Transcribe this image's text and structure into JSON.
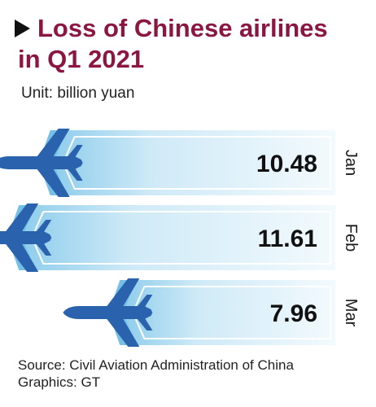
{
  "header": {
    "title_line_1": "Loss of Chinese airlines",
    "title_line_2": "in Q1 2021",
    "unit": "Unit: billion yuan"
  },
  "colors": {
    "title": "#8b1740",
    "plane": "#2a62ad",
    "band_dark": "#74c0e6",
    "band_light": "#e6f4fb"
  },
  "chart_data": {
    "type": "bar",
    "orientation": "horizontal",
    "categories": [
      "Jan",
      "Feb",
      "Mar"
    ],
    "values": [
      10.48,
      11.61,
      7.96
    ],
    "title": "Loss of Chinese airlines in Q1 2021",
    "unit": "Unit: billion yuan",
    "value_labels": [
      "10.48",
      "11.61",
      "7.96"
    ]
  },
  "footer": {
    "source": "Source: Civil Aviation Administration of China",
    "credit": "Graphics: GT"
  }
}
